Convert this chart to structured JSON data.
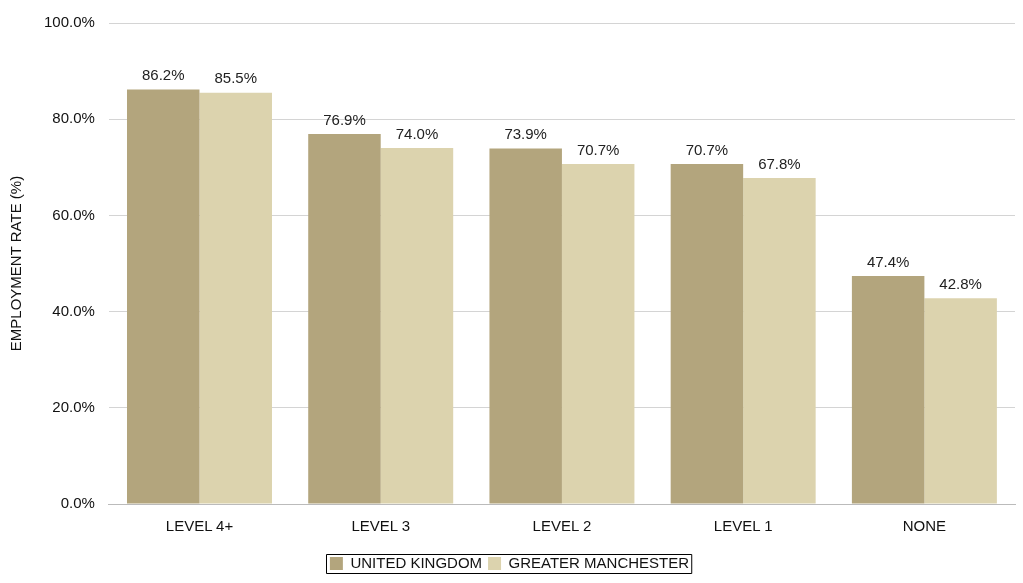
{
  "chart_data": {
    "type": "bar",
    "ylabel": "EMPLOYMENT RATE (%)",
    "categories": [
      "LEVEL 4+",
      "LEVEL 3",
      "LEVEL 2",
      "LEVEL 1",
      "NONE"
    ],
    "series": [
      {
        "name": "UNITED KINGDOM",
        "color": "#b3a57d",
        "values": [
          86.2,
          76.9,
          73.9,
          70.7,
          47.4
        ],
        "value_labels": [
          "86.2%",
          "76.9%",
          "73.9%",
          "70.7%",
          "47.4%"
        ]
      },
      {
        "name": "GREATER MANCHESTER",
        "color": "#dcd3ae",
        "values": [
          85.5,
          74.0,
          70.7,
          67.8,
          42.8
        ],
        "value_labels": [
          "85.5%",
          "74.0%",
          "70.7%",
          "67.8%",
          "42.8%"
        ]
      }
    ],
    "ylim": [
      0,
      100
    ],
    "yticks": [
      {
        "value": 0,
        "label": "0.0%"
      },
      {
        "value": 20,
        "label": "20.0%"
      },
      {
        "value": 40,
        "label": "40.0%"
      },
      {
        "value": 60,
        "label": "60.0%"
      },
      {
        "value": 80,
        "label": "80.0%"
      },
      {
        "value": 100,
        "label": "100.0%"
      }
    ],
    "grid": "y",
    "legend": "bottom"
  }
}
